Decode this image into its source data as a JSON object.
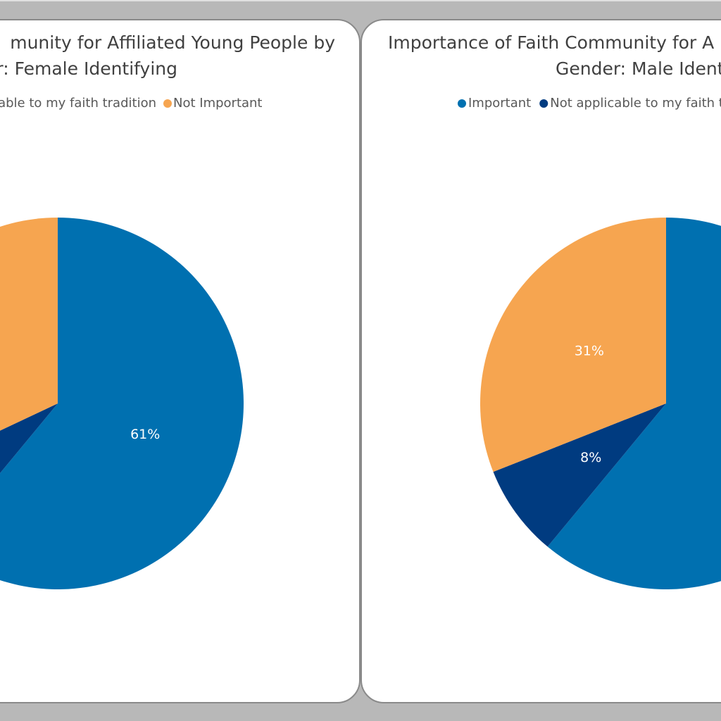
{
  "chart_data": [
    {
      "type": "pie",
      "title": [
        "munity for Affiliated Young People by",
        "r: Female Identifying"
      ],
      "categories": [
        null,
        "cable to my faith tradition",
        "Not Important"
      ],
      "colors": [
        "#0070b0",
        "#003b80",
        "#f6a550"
      ],
      "values": [
        61,
        7,
        32
      ],
      "value_labels": [
        "61%",
        null,
        null
      ]
    },
    {
      "type": "pie",
      "title": [
        "Importance of Faith Community for A",
        "Gender: Male Ident"
      ],
      "categories": [
        "Important",
        "Not applicable to my faith tra",
        null
      ],
      "colors": [
        "#0070b0",
        "#003b80",
        "#f6a550"
      ],
      "values": [
        61,
        8,
        31
      ],
      "value_labels": [
        null,
        "8%",
        "31%"
      ]
    }
  ]
}
